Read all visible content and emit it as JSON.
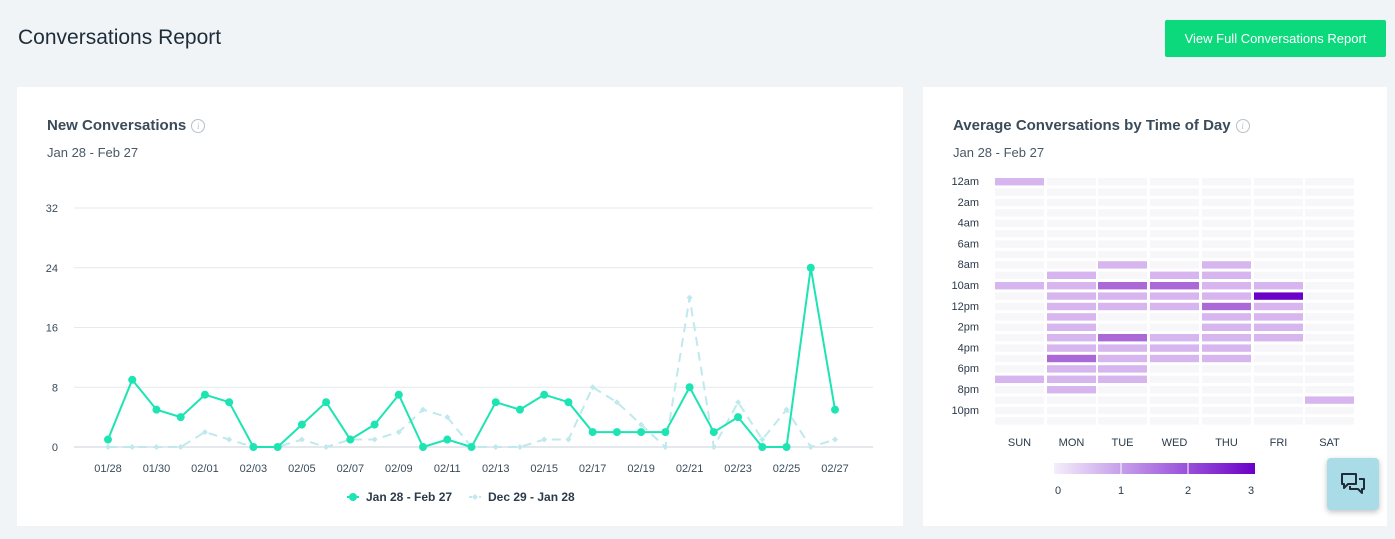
{
  "page": {
    "title": "Conversations Report",
    "view_button_label": "View Full Conversations Report"
  },
  "new_conversations": {
    "title": "New Conversations",
    "date_range": "Jan 28 - Feb 27"
  },
  "time_of_day": {
    "title": "Average Conversations by Time of Day",
    "date_range": "Jan 28 - Feb 27"
  },
  "colors": {
    "primary": "#0bd97c",
    "line_current": "#1de4b3",
    "line_previous": "#bfe9ee",
    "heat_max": "#6b00c8"
  },
  "chart_data": [
    {
      "type": "line",
      "title": "New Conversations",
      "x": [
        "01/28",
        "01/29",
        "01/30",
        "01/31",
        "02/01",
        "02/02",
        "02/03",
        "02/04",
        "02/05",
        "02/06",
        "02/07",
        "02/08",
        "02/09",
        "02/10",
        "02/11",
        "02/12",
        "02/13",
        "02/14",
        "02/15",
        "02/16",
        "02/17",
        "02/18",
        "02/19",
        "02/20",
        "02/21",
        "02/22",
        "02/23",
        "02/24",
        "02/25",
        "02/26",
        "02/27"
      ],
      "x_tick_labels": [
        "01/28",
        "01/30",
        "02/01",
        "02/03",
        "02/05",
        "02/07",
        "02/09",
        "02/11",
        "02/13",
        "02/15",
        "02/17",
        "02/19",
        "02/21",
        "02/23",
        "02/25",
        "02/27"
      ],
      "y_ticks": [
        0,
        8,
        16,
        24,
        32
      ],
      "ylim": [
        0,
        32
      ],
      "grid": true,
      "legend": "bottom",
      "series": [
        {
          "name": "Jan 28 - Feb 27",
          "values": [
            1,
            9,
            5,
            4,
            7,
            6,
            0,
            0,
            3,
            6,
            1,
            3,
            7,
            0,
            1,
            0,
            6,
            5,
            7,
            6,
            2,
            2,
            2,
            2,
            8,
            2,
            4,
            0,
            0,
            24,
            5
          ]
        },
        {
          "name": "Dec 29 - Jan 28",
          "values": [
            0,
            0,
            0,
            0,
            2,
            1,
            0,
            0,
            1,
            0,
            1,
            1,
            2,
            5,
            4,
            0,
            0,
            0,
            1,
            1,
            8,
            6,
            3,
            0,
            20,
            0,
            6,
            1,
            5,
            0,
            1
          ]
        }
      ]
    },
    {
      "type": "heatmap",
      "title": "Average Conversations by Time of Day",
      "columns": [
        "SUN",
        "MON",
        "TUE",
        "WED",
        "THU",
        "FRI",
        "SAT"
      ],
      "row_labels": [
        "12am",
        "",
        "2am",
        "",
        "4am",
        "",
        "6am",
        "",
        "8am",
        "",
        "10am",
        "",
        "12pm",
        "",
        "2pm",
        "",
        "4pm",
        "",
        "6pm",
        "",
        "8pm",
        "",
        "10pm",
        ""
      ],
      "values": [
        [
          1,
          0,
          0,
          0,
          0,
          0,
          0
        ],
        [
          0,
          0,
          0,
          0,
          0,
          0,
          0
        ],
        [
          0,
          0,
          0,
          0,
          0,
          0,
          0
        ],
        [
          0,
          0,
          0,
          0,
          0,
          0,
          0
        ],
        [
          0,
          0,
          0,
          0,
          0,
          0,
          0
        ],
        [
          0,
          0,
          0,
          0,
          0,
          0,
          0
        ],
        [
          0,
          0,
          0,
          0,
          0,
          0,
          0
        ],
        [
          0,
          0,
          0,
          0,
          0,
          0,
          0
        ],
        [
          0,
          0,
          1,
          0,
          1,
          0,
          0
        ],
        [
          0,
          1,
          0,
          1,
          1,
          0,
          0
        ],
        [
          1,
          1,
          2,
          2,
          1,
          1,
          0
        ],
        [
          0,
          1,
          1,
          1,
          1,
          3,
          0
        ],
        [
          0,
          1,
          1,
          1,
          2,
          1,
          0
        ],
        [
          0,
          1,
          0,
          0,
          1,
          1,
          0
        ],
        [
          0,
          1,
          0,
          0,
          1,
          1,
          0
        ],
        [
          0,
          1,
          2,
          1,
          1,
          1,
          0
        ],
        [
          0,
          1,
          1,
          1,
          1,
          0,
          0
        ],
        [
          0,
          2,
          1,
          1,
          1,
          0,
          0
        ],
        [
          0,
          1,
          1,
          0,
          0,
          0,
          0
        ],
        [
          1,
          1,
          1,
          0,
          0,
          0,
          0
        ],
        [
          0,
          1,
          0,
          0,
          0,
          0,
          0
        ],
        [
          0,
          0,
          0,
          0,
          0,
          0,
          1
        ],
        [
          0,
          0,
          0,
          0,
          0,
          0,
          0
        ],
        [
          0,
          0,
          0,
          0,
          0,
          0,
          0
        ]
      ],
      "scale_ticks": [
        0,
        1,
        2,
        3
      ]
    }
  ]
}
